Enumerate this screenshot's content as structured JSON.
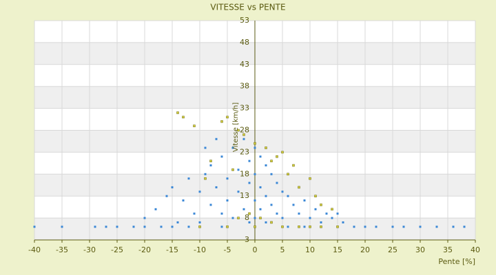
{
  "chart_data": {
    "type": "scatter",
    "title": "VITESSE vs PENTE",
    "x_label": "Pente [%]",
    "y_label": "Vitesse [km/h]",
    "xlim": [
      -40,
      40
    ],
    "xticks": [
      -40,
      -35,
      -30,
      -25,
      -20,
      -15,
      -10,
      -5,
      0,
      5,
      10,
      15,
      20,
      25,
      30,
      35,
      40
    ],
    "ylim": [
      3,
      53
    ],
    "yticks": [
      3,
      8,
      13,
      18,
      23,
      28,
      33,
      38,
      43,
      48,
      53
    ],
    "grid": true,
    "series": [
      {
        "color": "#3a87d6",
        "x": [
          -40,
          -35,
          -29,
          -27,
          -25,
          -22,
          -20,
          -17,
          -15,
          -12,
          18,
          20,
          22,
          25,
          27,
          30,
          33,
          36,
          38,
          -18,
          -16,
          -15,
          -13,
          -12,
          -11,
          -10,
          -9,
          -8,
          -8,
          -7,
          -6,
          -6,
          -5,
          -5,
          -4,
          -4,
          -3,
          -3,
          -2,
          -2,
          -1,
          -1,
          -1,
          0,
          0,
          0,
          0,
          1,
          1,
          1,
          2,
          2,
          2,
          3,
          3,
          4,
          4,
          5,
          5,
          6,
          7,
          8,
          9,
          10,
          11,
          12,
          13,
          14,
          15,
          16,
          -14,
          -10,
          -6,
          6,
          9,
          -20,
          -9,
          -7
        ],
        "values": [
          6,
          6,
          6,
          6,
          6,
          6,
          6,
          6,
          6,
          6,
          6,
          6,
          6,
          6,
          6,
          6,
          6,
          6,
          6,
          10,
          13,
          15,
          12,
          17,
          9,
          14,
          18,
          11,
          20,
          15,
          22,
          9,
          17,
          12,
          24,
          8,
          19,
          14,
          26,
          10,
          21,
          16,
          7,
          24,
          18,
          12,
          8,
          22,
          15,
          10,
          20,
          13,
          7,
          18,
          11,
          16,
          9,
          14,
          8,
          13,
          11,
          9,
          12,
          8,
          10,
          7,
          9,
          8,
          9,
          7,
          7,
          7,
          6,
          6,
          6,
          8,
          24,
          26
        ]
      },
      {
        "color": "#d4cf3c",
        "x": [
          -14,
          -13,
          -11,
          -6,
          -5,
          -3,
          -2,
          0,
          2,
          4,
          5,
          7,
          10,
          6,
          8,
          -8,
          -9,
          -4,
          3,
          11,
          12,
          -1,
          1,
          3,
          -3,
          0,
          5,
          8,
          10,
          12,
          15,
          -5,
          -10,
          14
        ],
        "values": [
          32,
          31,
          29,
          30,
          31,
          28,
          27,
          25,
          24,
          22,
          23,
          20,
          17,
          18,
          15,
          21,
          17,
          19,
          21,
          13,
          11,
          9,
          8,
          7,
          8,
          6,
          6,
          6,
          6,
          6,
          6,
          6,
          6,
          10
        ]
      }
    ]
  }
}
